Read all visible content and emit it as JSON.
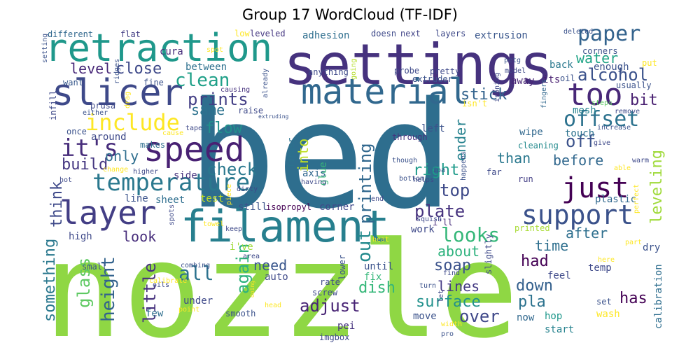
{
  "title": "Group 17 WordCloud (TF-IDF)",
  "words": [
    {
      "text": "bed",
      "color": "#2e6e8e"
    },
    {
      "text": "nozzle",
      "color": "#8fd744"
    },
    {
      "text": "settings",
      "color": "#46327e"
    },
    {
      "text": "filament",
      "color": "#277f8e"
    },
    {
      "text": "retraction",
      "color": "#1f988b"
    },
    {
      "text": "slicer",
      "color": "#3e4989"
    },
    {
      "text": "speed",
      "color": "#482173"
    },
    {
      "text": "material",
      "color": "#31688e"
    },
    {
      "text": "layer",
      "color": "#433e85"
    },
    {
      "text": "temperature",
      "color": "#2a788e"
    },
    {
      "text": "too",
      "color": "#482878"
    },
    {
      "text": "just",
      "color": "#440154"
    },
    {
      "text": "support",
      "color": "#3b528b"
    },
    {
      "text": "include",
      "color": "#fde725"
    },
    {
      "text": "it's",
      "color": "#472d7b"
    },
    {
      "text": "paper",
      "color": "#33638d"
    },
    {
      "text": "offset",
      "color": "#2c728e"
    },
    {
      "text": "looks",
      "color": "#35b779"
    },
    {
      "text": "alcohol",
      "color": "#3b528b"
    },
    {
      "text": "check",
      "color": "#2a788e"
    },
    {
      "text": "flow",
      "color": "#21918c"
    },
    {
      "text": "clean",
      "color": "#1fa088"
    },
    {
      "text": "prints",
      "color": "#433e85"
    },
    {
      "text": "printing",
      "color": "#31688e"
    },
    {
      "text": "leveling",
      "color": "#9fda3a"
    },
    {
      "text": "right",
      "color": "#1e9b8a"
    },
    {
      "text": "build",
      "color": "#453781"
    },
    {
      "text": "off",
      "color": "#3b528b"
    },
    {
      "text": "water",
      "color": "#20a486"
    },
    {
      "text": "stick",
      "color": "#33638d"
    },
    {
      "text": "level",
      "color": "#482878"
    },
    {
      "text": "close",
      "color": "#3e4989"
    },
    {
      "text": "bit",
      "color": "#481f70"
    },
    {
      "text": "same",
      "color": "#2c728e"
    },
    {
      "text": "plate",
      "color": "#46327e"
    },
    {
      "text": "top",
      "color": "#3e4a89"
    },
    {
      "text": "before",
      "color": "#31688e"
    },
    {
      "text": "after",
      "color": "#2e6f8e"
    },
    {
      "text": "out",
      "color": "#238a8d"
    },
    {
      "text": "all",
      "color": "#2c728e"
    },
    {
      "text": "again",
      "color": "#2db27d"
    },
    {
      "text": "over",
      "color": "#3f4889"
    },
    {
      "text": "adjust",
      "color": "#482475"
    },
    {
      "text": "surface",
      "color": "#21918c"
    },
    {
      "text": "soap",
      "color": "#3b528b"
    },
    {
      "text": "dish",
      "color": "#35b779"
    },
    {
      "text": "lines",
      "color": "#443a83"
    },
    {
      "text": "down",
      "color": "#34608d"
    },
    {
      "text": "pla",
      "color": "#2c728e"
    },
    {
      "text": "has",
      "color": "#440154"
    },
    {
      "text": "had",
      "color": "#440154"
    },
    {
      "text": "time",
      "color": "#2e6f8e"
    },
    {
      "text": "about",
      "color": "#2db27d"
    },
    {
      "text": "need",
      "color": "#39568c"
    },
    {
      "text": "little",
      "color": "#46327e"
    },
    {
      "text": "glass",
      "color": "#5ec962"
    },
    {
      "text": "height",
      "color": "#33638d"
    },
    {
      "text": "something",
      "color": "#2a788e"
    },
    {
      "text": "think",
      "color": "#3e4989"
    },
    {
      "text": "look",
      "color": "#472d7b"
    },
    {
      "text": "ender",
      "color": "#26828e"
    },
    {
      "text": "than",
      "color": "#2a788e"
    },
    {
      "text": "only",
      "color": "#2e6e8e"
    },
    {
      "text": "into",
      "color": "#c0df25"
    },
    {
      "text": "calibration",
      "color": "#2e6e8e"
    },
    {
      "text": "extrusion",
      "color": "#39568c"
    },
    {
      "text": "adhesion",
      "color": "#2e6e8e"
    },
    {
      "text": "different",
      "color": "#31688e"
    },
    {
      "text": "flat",
      "color": "#433e85"
    },
    {
      "text": "cura",
      "color": "#472d7b"
    },
    {
      "text": "fine",
      "color": "#3b528b"
    },
    {
      "text": "want",
      "color": "#38598c"
    },
    {
      "text": "between",
      "color": "#2d708e"
    },
    {
      "text": "back",
      "color": "#2a788e"
    },
    {
      "text": "enough",
      "color": "#3b528b"
    },
    {
      "text": "its",
      "color": "#481f70"
    },
    {
      "text": "away",
      "color": "#482475"
    },
    {
      "text": "mesh",
      "color": "#26828e"
    },
    {
      "text": "leveled",
      "color": "#453781"
    },
    {
      "text": "next",
      "color": "#414487"
    },
    {
      "text": "layers",
      "color": "#3e4989"
    },
    {
      "text": "low",
      "color": "#fde725"
    },
    {
      "text": "doesn",
      "color": "#3e4989"
    },
    {
      "text": "wipe",
      "color": "#31688e"
    },
    {
      "text": "cleaning",
      "color": "#238a8d"
    },
    {
      "text": "touch",
      "color": "#2c728e"
    },
    {
      "text": "left",
      "color": "#3b528b"
    },
    {
      "text": "through",
      "color": "#46327e"
    },
    {
      "text": "glue",
      "color": "#37b878"
    },
    {
      "text": "axis",
      "color": "#31688e"
    },
    {
      "text": "finger",
      "color": "#2c728e"
    },
    {
      "text": "around",
      "color": "#3e4989"
    },
    {
      "text": "side",
      "color": "#46327e"
    },
    {
      "text": "line",
      "color": "#3b528b"
    },
    {
      "text": "sheet",
      "color": "#2e6e8e"
    },
    {
      "text": "test",
      "color": "#c2df23"
    },
    {
      "text": "high",
      "color": "#3e4989"
    },
    {
      "text": "still",
      "color": "#3b528b"
    },
    {
      "text": "isopropyl",
      "color": "#440154"
    },
    {
      "text": "corner",
      "color": "#3f4889"
    },
    {
      "text": "work",
      "color": "#3e4989"
    },
    {
      "text": "i'll",
      "color": "#472d7b"
    },
    {
      "text": "i've",
      "color": "#a0da39"
    },
    {
      "text": "auto",
      "color": "#3e4989"
    },
    {
      "text": "fix",
      "color": "#35b779"
    },
    {
      "text": "until",
      "color": "#3b528b"
    },
    {
      "text": "under",
      "color": "#3e4989"
    },
    {
      "text": "few",
      "color": "#2e6e8e"
    },
    {
      "text": "move",
      "color": "#3b528b"
    },
    {
      "text": "pei",
      "color": "#46327e"
    },
    {
      "text": "now",
      "color": "#31688e"
    },
    {
      "text": "hop",
      "color": "#1f988b"
    },
    {
      "text": "start",
      "color": "#26828e"
    },
    {
      "text": "wash",
      "color": "#fde725"
    },
    {
      "text": "set",
      "color": "#3b528b"
    },
    {
      "text": "temp",
      "color": "#3e4989"
    },
    {
      "text": "plastic",
      "color": "#31688e"
    },
    {
      "text": "run",
      "color": "#433e85"
    },
    {
      "text": "far",
      "color": "#3e4989"
    },
    {
      "text": "dry",
      "color": "#3b528b"
    },
    {
      "text": "feel",
      "color": "#3e4989"
    },
    {
      "text": "printed",
      "color": "#a8db34"
    },
    {
      "text": "oil",
      "color": "#3b528b"
    },
    {
      "text": "usually",
      "color": "#3b528b"
    },
    {
      "text": "put",
      "color": "#fde725"
    },
    {
      "text": "fingers",
      "color": "#31688e"
    },
    {
      "text": "steps",
      "color": "#5ec962"
    },
    {
      "text": "remove",
      "color": "#3e4989"
    },
    {
      "text": "corners",
      "color": "#3b528b"
    },
    {
      "text": "deleted",
      "color": "#3b528b"
    },
    {
      "text": "model",
      "color": "#3e4989"
    },
    {
      "text": "petg",
      "color": "#3b528b"
    },
    {
      "text": "probe",
      "color": "#3e4989"
    },
    {
      "text": "extruder",
      "color": "#3b528b"
    },
    {
      "text": "pretty",
      "color": "#3e4989"
    },
    {
      "text": "going",
      "color": "#b5de2b"
    },
    {
      "text": "anything",
      "color": "#3e4989"
    },
    {
      "text": "already",
      "color": "#3b528b"
    },
    {
      "text": "causing",
      "color": "#46327e"
    },
    {
      "text": "raise",
      "color": "#3e4989"
    },
    {
      "text": "tape",
      "color": "#3e4989"
    },
    {
      "text": "cause",
      "color": "#fde725"
    },
    {
      "text": "makes",
      "color": "#2e6e8e"
    },
    {
      "text": "infill",
      "color": "#3e4989"
    },
    {
      "text": "once",
      "color": "#3b528b"
    },
    {
      "text": "hot",
      "color": "#3e4989"
    },
    {
      "text": "higher",
      "color": "#3e4989"
    },
    {
      "text": "change",
      "color": "#fde725"
    },
    {
      "text": "prusa",
      "color": "#3e4989"
    },
    {
      "text": "either",
      "color": "#3b528b"
    },
    {
      "text": "drag",
      "color": "#fde725"
    },
    {
      "text": "setting",
      "color": "#3b528b"
    },
    {
      "text": "spot",
      "color": "#fde725"
    },
    {
      "text": "ridges",
      "color": "#3b528b"
    },
    {
      "text": "having",
      "color": "#3e4989"
    },
    {
      "text": "bottom",
      "color": "#3b528b"
    },
    {
      "text": "dirty",
      "color": "#3e4989"
    },
    {
      "text": "end",
      "color": "#3e4989"
    },
    {
      "text": "keep",
      "color": "#3e4989"
    },
    {
      "text": "area",
      "color": "#3e4989"
    },
    {
      "text": "combing",
      "color": "#3b528b"
    },
    {
      "text": "calibrate",
      "color": "#fde725"
    },
    {
      "text": "point",
      "color": "#fde725"
    },
    {
      "text": "smooth",
      "color": "#3b528b"
    },
    {
      "text": "head",
      "color": "#fde725"
    },
    {
      "text": "imgbox",
      "color": "#3e4989"
    },
    {
      "text": "screw",
      "color": "#3e4989"
    },
    {
      "text": "rate",
      "color": "#3e4989"
    },
    {
      "text": "lower",
      "color": "#3b528b"
    },
    {
      "text": "heat",
      "color": "#fde725"
    },
    {
      "text": "squish",
      "color": "#3e4989"
    },
    {
      "text": "though",
      "color": "#3b528b"
    },
    {
      "text": "helps",
      "color": "#3e4989"
    },
    {
      "text": "ipa",
      "color": "#3b528b"
    },
    {
      "text": "find",
      "color": "#3e4989"
    },
    {
      "text": "turn",
      "color": "#3b528b"
    },
    {
      "text": "let",
      "color": "#3e4989"
    },
    {
      "text": "width",
      "color": "#fde725"
    },
    {
      "text": "pro",
      "color": "#3b528b"
    },
    {
      "text": "slightly",
      "color": "#3e4989"
    },
    {
      "text": "part",
      "color": "#fde725"
    },
    {
      "text": "here",
      "color": "#fde725"
    },
    {
      "text": "perfect",
      "color": "#fde725"
    },
    {
      "text": "able",
      "color": "#fde725"
    },
    {
      "text": "warm",
      "color": "#3e4989"
    },
    {
      "text": "increase",
      "color": "#3b528b"
    },
    {
      "text": "give",
      "color": "#3e4989"
    },
    {
      "text": "happens",
      "color": "#3b528b"
    },
    {
      "text": "isn't",
      "color": "#fde725"
    },
    {
      "text": "ironing",
      "color": "#3e4989"
    },
    {
      "text": "spots",
      "color": "#3e4989"
    },
    {
      "text": "oils",
      "color": "#3e4989"
    },
    {
      "text": "towel",
      "color": "#fde725"
    },
    {
      "text": "small",
      "color": "#3b528b"
    },
    {
      "text": "piece",
      "color": "#fde725"
    },
    {
      "text": "doing",
      "color": "#fde725"
    },
    {
      "text": "extruding",
      "color": "#3b528b"
    }
  ]
}
